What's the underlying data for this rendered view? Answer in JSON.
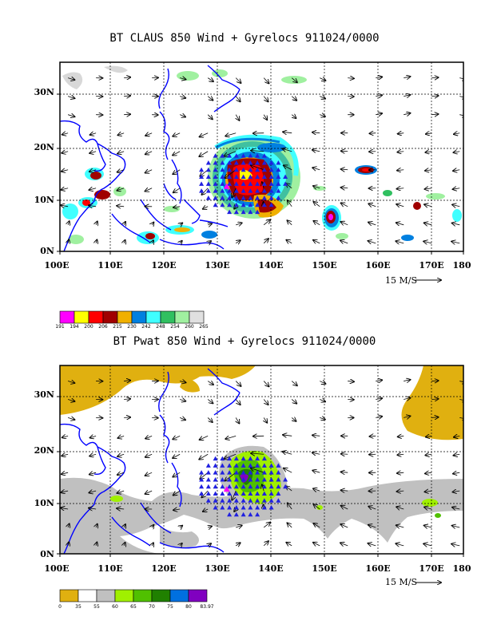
{
  "top": {
    "title": "BT CLAUS 850 Wind + Gyrelocs 911024/0000",
    "speed_label": "15 M/S",
    "colorbar": {
      "colors": [
        "#ff00ff",
        "#ffff00",
        "#ff0000",
        "#a00000",
        "#f0b000",
        "#0080e0",
        "#40ffff",
        "#30c060",
        "#a0f0a0",
        "#e0e0e0"
      ],
      "labels": [
        "191",
        "194",
        "200",
        "206",
        "215",
        "230",
        "242",
        "248",
        "254",
        "260",
        "265"
      ]
    }
  },
  "bottom": {
    "title": "BT Pwat 850 Wind + Gyrelocs 911024/0000",
    "speed_label": "15 M/S",
    "colorbar": {
      "colors": [
        "#e0b010",
        "#ffffff",
        "#c0c0c0",
        "#a0f000",
        "#50c000",
        "#208000",
        "#0070e0",
        "#8000c0"
      ],
      "labels": [
        "0",
        "35",
        "55",
        "60",
        "65",
        "70",
        "75",
        "80",
        "83.97"
      ]
    }
  },
  "lat_labels": [
    "30N",
    "20N",
    "10N",
    "0N"
  ],
  "lon_labels": [
    "100E",
    "110E",
    "120E",
    "130E",
    "140E",
    "150E",
    "160E",
    "170E",
    "180"
  ],
  "colors": {
    "coast": "#0000ff",
    "gyre_marker": "#2020e0",
    "center_marker": "#ff00ff",
    "frame": "#000000"
  }
}
